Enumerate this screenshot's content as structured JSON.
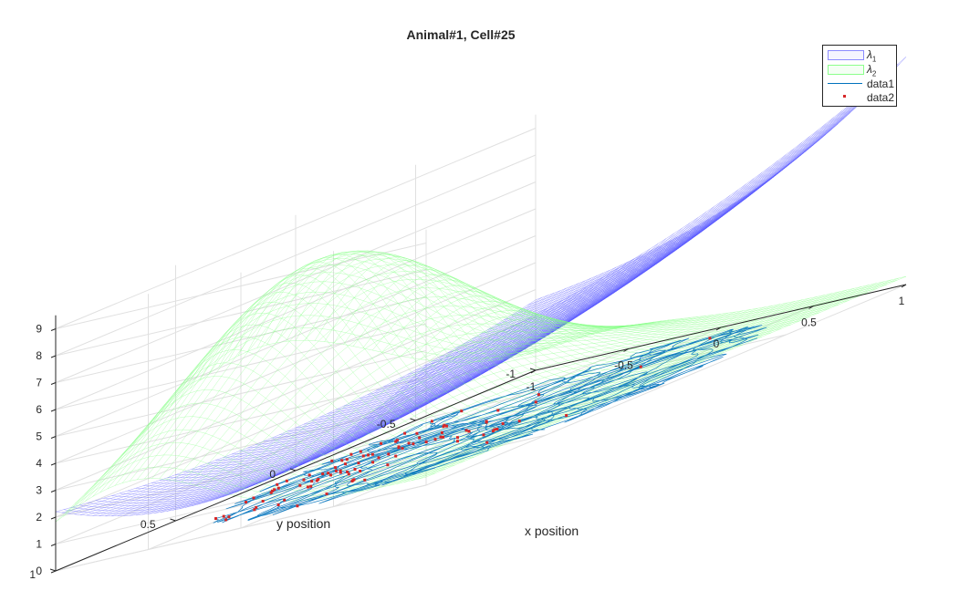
{
  "chart_data": {
    "type": "surface",
    "title": "Animal#1, Cell#25",
    "xlabel": "x position",
    "ylabel": "y position",
    "zlabel": "",
    "xlim": [
      -1,
      1
    ],
    "ylim": [
      -1,
      1
    ],
    "zlim": [
      0,
      9.5
    ],
    "x_ticks": [
      "-1",
      "-0.5",
      "0",
      "0.5",
      "1"
    ],
    "y_ticks": [
      "-1",
      "-0.5",
      "0",
      "0.5",
      "1"
    ],
    "z_ticks": [
      "0",
      "1",
      "2",
      "3",
      "4",
      "5",
      "6",
      "7",
      "8",
      "9"
    ],
    "grid": true,
    "legend_location": "top-right",
    "series": [
      {
        "name": "λ1",
        "kind": "mesh-surface",
        "color": "#5a5aff",
        "peak_value": 8.7,
        "peak_at": [
          1,
          -1
        ]
      },
      {
        "name": "λ2",
        "kind": "mesh-surface",
        "color": "#7dff7d",
        "peak_value": 8.0,
        "peak_at": [
          -0.6,
          0.2
        ]
      },
      {
        "name": "data1",
        "kind": "trajectory-line",
        "color": "#0072bd"
      },
      {
        "name": "data2",
        "kind": "spike-markers",
        "color": "#d62728"
      }
    ]
  },
  "legend": {
    "items": [
      {
        "main": "λ",
        "sub": "1"
      },
      {
        "main": "λ",
        "sub": "2"
      },
      {
        "main": "data1",
        "sub": ""
      },
      {
        "main": "data2",
        "sub": ""
      }
    ]
  }
}
